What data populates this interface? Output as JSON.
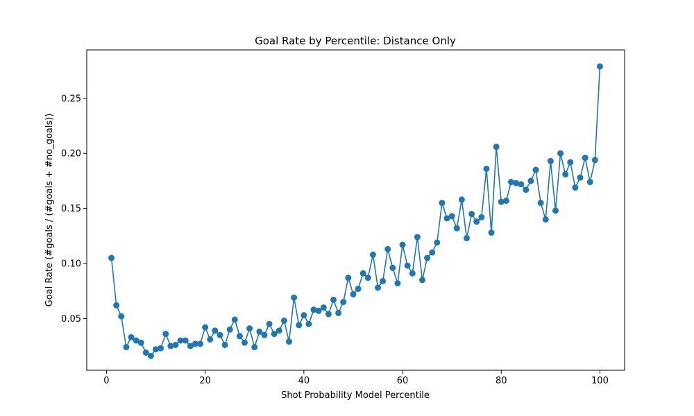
{
  "chart_data": {
    "type": "line",
    "title": "Goal Rate by Percentile: Distance Only",
    "xlabel": "Shot Probability Model Percentile",
    "ylabel": "Goal Rate (#goals / (#goals + #no_goals))",
    "xlim": [
      -4,
      105
    ],
    "ylim": [
      0.003,
      0.294
    ],
    "xticks": [
      0,
      20,
      40,
      60,
      80,
      100
    ],
    "xtick_labels": [
      "0",
      "20",
      "40",
      "60",
      "80",
      "100"
    ],
    "yticks": [
      0.05,
      0.1,
      0.15,
      0.2,
      0.25
    ],
    "ytick_labels": [
      "0.05",
      "0.10",
      "0.15",
      "0.20",
      "0.25"
    ],
    "grid": false,
    "color": "#1f77b4",
    "series": [
      {
        "name": "",
        "x": [
          1,
          2,
          3,
          4,
          5,
          6,
          7,
          8,
          9,
          10,
          11,
          12,
          13,
          14,
          15,
          16,
          17,
          18,
          19,
          20,
          21,
          22,
          23,
          24,
          25,
          26,
          27,
          28,
          29,
          30,
          31,
          32,
          33,
          34,
          35,
          36,
          37,
          38,
          39,
          40,
          41,
          42,
          43,
          44,
          45,
          46,
          47,
          48,
          49,
          50,
          51,
          52,
          53,
          54,
          55,
          56,
          57,
          58,
          59,
          60,
          61,
          62,
          63,
          64,
          65,
          66,
          67,
          68,
          69,
          70,
          71,
          72,
          73,
          74,
          75,
          76,
          77,
          78,
          79,
          80,
          81,
          82,
          83,
          84,
          85,
          86,
          87,
          88,
          89,
          90,
          91,
          92,
          93,
          94,
          95,
          96,
          97,
          98,
          99,
          100
        ],
        "values": [
          0.105,
          0.062,
          0.052,
          0.024,
          0.033,
          0.03,
          0.028,
          0.019,
          0.016,
          0.022,
          0.023,
          0.036,
          0.025,
          0.026,
          0.03,
          0.03,
          0.025,
          0.027,
          0.027,
          0.042,
          0.031,
          0.039,
          0.035,
          0.026,
          0.04,
          0.049,
          0.034,
          0.028,
          0.041,
          0.024,
          0.038,
          0.035,
          0.045,
          0.036,
          0.039,
          0.048,
          0.029,
          0.069,
          0.044,
          0.053,
          0.045,
          0.058,
          0.057,
          0.06,
          0.054,
          0.067,
          0.055,
          0.065,
          0.087,
          0.072,
          0.077,
          0.091,
          0.087,
          0.108,
          0.078,
          0.084,
          0.113,
          0.096,
          0.082,
          0.117,
          0.098,
          0.091,
          0.124,
          0.085,
          0.105,
          0.11,
          0.119,
          0.155,
          0.141,
          0.143,
          0.132,
          0.158,
          0.123,
          0.145,
          0.138,
          0.142,
          0.186,
          0.128,
          0.206,
          0.156,
          0.157,
          0.174,
          0.173,
          0.172,
          0.167,
          0.175,
          0.185,
          0.155,
          0.14,
          0.193,
          0.148,
          0.2,
          0.181,
          0.192,
          0.169,
          0.178,
          0.196,
          0.174,
          0.194,
          0.279
        ]
      }
    ]
  }
}
